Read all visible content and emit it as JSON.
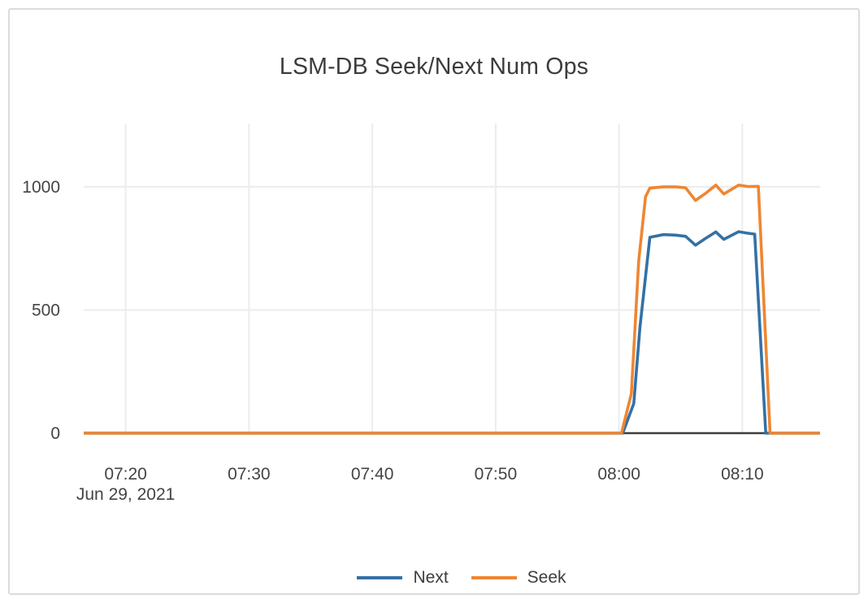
{
  "card": {
    "title": "LSM-DB Seek/Next Num Ops"
  },
  "chart_data": {
    "type": "line",
    "title": "LSM-DB Seek/Next Num Ops",
    "xlabel": "",
    "ylabel": "",
    "x_unit": "minutes after 07:00 on Jun 29, 2021",
    "xlim": [
      16.6,
      76.3
    ],
    "ylim": [
      0,
      1257
    ],
    "grid": true,
    "legend_position": "bottom-center",
    "date_label": "Jun 29, 2021",
    "x_ticks": [
      {
        "v": 20,
        "label": "07:20"
      },
      {
        "v": 30,
        "label": "07:30"
      },
      {
        "v": 40,
        "label": "07:40"
      },
      {
        "v": 50,
        "label": "07:50"
      },
      {
        "v": 60,
        "label": "08:00"
      },
      {
        "v": 70,
        "label": "08:10"
      }
    ],
    "y_ticks": [
      {
        "v": 0,
        "label": "0"
      },
      {
        "v": 500,
        "label": "500"
      },
      {
        "v": 1000,
        "label": "1000"
      }
    ],
    "series": [
      {
        "name": "Next",
        "color": "#3471A5",
        "points": [
          [
            16.6,
            0
          ],
          [
            30,
            0
          ],
          [
            45,
            0
          ],
          [
            60.3,
            0
          ],
          [
            61.2,
            120
          ],
          [
            61.7,
            430
          ],
          [
            62.5,
            795
          ],
          [
            63.6,
            806
          ],
          [
            64.6,
            804
          ],
          [
            65.4,
            799
          ],
          [
            66.2,
            763
          ],
          [
            67.0,
            790
          ],
          [
            67.85,
            817
          ],
          [
            68.5,
            787
          ],
          [
            69.7,
            818
          ],
          [
            70.4,
            812
          ],
          [
            71.0,
            808
          ],
          [
            71.9,
            0
          ],
          [
            76.3,
            0
          ]
        ]
      },
      {
        "name": "Seek",
        "color": "#EE8633",
        "points": [
          [
            16.6,
            0
          ],
          [
            30,
            0
          ],
          [
            45,
            0
          ],
          [
            60.2,
            0
          ],
          [
            61.0,
            160
          ],
          [
            61.6,
            700
          ],
          [
            62.15,
            960
          ],
          [
            62.5,
            995
          ],
          [
            63.6,
            1000
          ],
          [
            64.6,
            1000
          ],
          [
            65.4,
            996
          ],
          [
            66.2,
            945
          ],
          [
            67.0,
            973
          ],
          [
            67.85,
            1007
          ],
          [
            68.5,
            971
          ],
          [
            69.7,
            1007
          ],
          [
            70.5,
            1001
          ],
          [
            71.3,
            1002
          ],
          [
            72.25,
            0
          ],
          [
            76.3,
            0
          ]
        ]
      }
    ],
    "colors": {
      "grid": "#ececec",
      "zeroline": "#3d3d3d",
      "tick_text": "#444444",
      "title_text": "#3c3c3c"
    }
  }
}
